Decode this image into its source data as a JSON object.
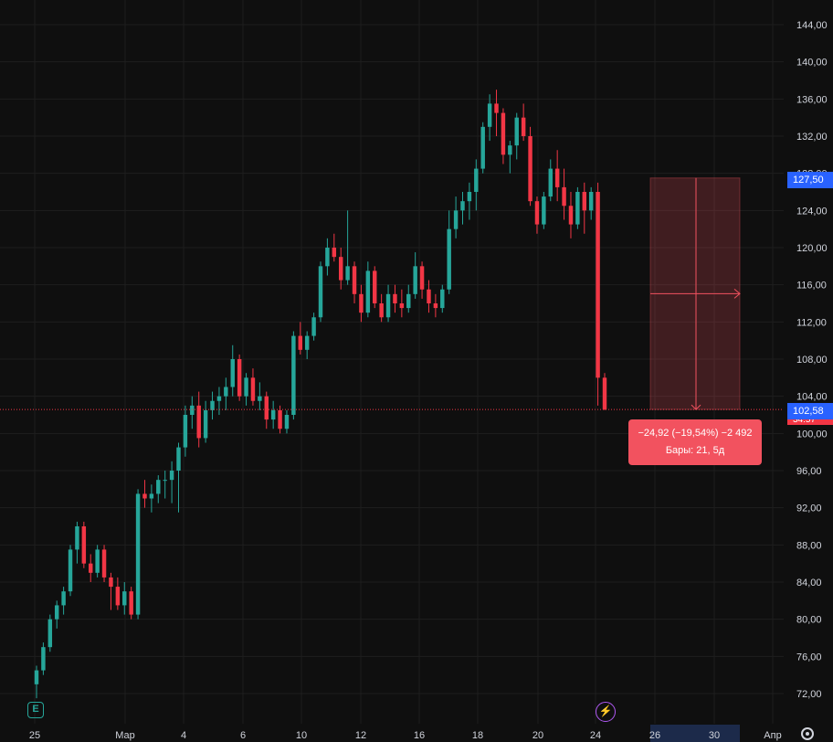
{
  "chart_data": {
    "type": "candlestick",
    "ylim": [
      70,
      146
    ],
    "y_ticks": [
      "72,00",
      "76,00",
      "80,00",
      "84,00",
      "88,00",
      "92,00",
      "96,00",
      "100,00",
      "104,00",
      "108,00",
      "112,00",
      "116,00",
      "120,00",
      "124,00",
      "128,00",
      "132,00",
      "136,00",
      "140,00",
      "144,00"
    ],
    "x_ticks": [
      "25",
      "Мар",
      "4",
      "6",
      "10",
      "12",
      "16",
      "18",
      "20",
      "24",
      "26",
      "30",
      "Апр"
    ],
    "current_price": 102.58,
    "colors": {
      "up": "#26a69a",
      "down": "#f23645",
      "measure": "#f2525f",
      "blue": "#2962ff",
      "grid": "#1e1e1e",
      "background": "#0f0f0f"
    },
    "candles": [
      [
        73.0,
        75.0,
        71.5,
        74.5
      ],
      [
        74.5,
        77.5,
        74.0,
        77.0
      ],
      [
        77.0,
        80.5,
        76.5,
        80.0
      ],
      [
        80.0,
        82.0,
        79.0,
        81.5
      ],
      [
        81.5,
        83.5,
        80.5,
        83.0
      ],
      [
        83.0,
        88.0,
        82.5,
        87.5
      ],
      [
        87.5,
        90.5,
        86.0,
        90.0
      ],
      [
        90.0,
        90.5,
        85.5,
        86.0
      ],
      [
        86.0,
        87.0,
        84.0,
        85.0
      ],
      [
        85.0,
        88.0,
        84.5,
        87.5
      ],
      [
        87.5,
        88.0,
        84.0,
        84.5
      ],
      [
        84.5,
        85.0,
        81.0,
        83.5
      ],
      [
        83.5,
        84.5,
        81.0,
        81.5
      ],
      [
        81.5,
        84.0,
        80.5,
        83.0
      ],
      [
        83.0,
        83.5,
        80.0,
        80.5
      ],
      [
        80.5,
        94.0,
        80.0,
        93.5
      ],
      [
        93.5,
        95.0,
        92.0,
        93.0
      ],
      [
        93.0,
        94.5,
        91.5,
        93.5
      ],
      [
        93.5,
        95.5,
        92.5,
        95.0
      ],
      [
        95.0,
        96.0,
        93.0,
        95.0
      ],
      [
        95.0,
        97.0,
        92.5,
        96.0
      ],
      [
        96.0,
        99.0,
        91.5,
        98.5
      ],
      [
        98.5,
        103.0,
        97.5,
        102.0
      ],
      [
        102.0,
        104.0,
        100.5,
        103.0
      ],
      [
        103.0,
        104.5,
        98.5,
        99.5
      ],
      [
        99.5,
        103.5,
        99.0,
        102.5
      ],
      [
        102.5,
        104.5,
        101.5,
        103.5
      ],
      [
        103.5,
        105.0,
        102.0,
        104.0
      ],
      [
        104.0,
        106.0,
        102.5,
        105.0
      ],
      [
        105.0,
        109.5,
        104.0,
        108.0
      ],
      [
        108.0,
        108.5,
        103.5,
        104.0
      ],
      [
        104.0,
        106.5,
        103.0,
        106.0
      ],
      [
        106.0,
        107.0,
        103.0,
        103.5
      ],
      [
        103.5,
        105.5,
        102.5,
        104.0
      ],
      [
        104.0,
        104.5,
        100.5,
        101.5
      ],
      [
        101.5,
        103.5,
        100.5,
        102.5
      ],
      [
        102.5,
        103.0,
        100.0,
        100.5
      ],
      [
        100.5,
        102.5,
        100.0,
        102.0
      ],
      [
        102.0,
        111.0,
        101.5,
        110.5
      ],
      [
        110.5,
        112.0,
        108.5,
        109.0
      ],
      [
        109.0,
        111.0,
        108.0,
        110.5
      ],
      [
        110.5,
        113.0,
        110.0,
        112.5
      ],
      [
        112.5,
        118.5,
        112.0,
        118.0
      ],
      [
        118.0,
        121.0,
        117.0,
        120.0
      ],
      [
        120.0,
        121.5,
        118.5,
        119.0
      ],
      [
        119.0,
        120.0,
        115.5,
        116.5
      ],
      [
        116.5,
        124.0,
        116.0,
        118.0
      ],
      [
        118.0,
        118.5,
        114.0,
        115.0
      ],
      [
        115.0,
        116.0,
        112.0,
        113.0
      ],
      [
        113.0,
        118.5,
        112.5,
        117.5
      ],
      [
        117.5,
        118.0,
        113.5,
        114.0
      ],
      [
        114.0,
        115.0,
        112.0,
        112.5
      ],
      [
        112.5,
        116.0,
        112.0,
        115.0
      ],
      [
        115.0,
        116.0,
        113.0,
        114.0
      ],
      [
        114.0,
        115.5,
        112.5,
        113.5
      ],
      [
        113.5,
        116.0,
        113.0,
        115.0
      ],
      [
        115.0,
        119.5,
        114.5,
        118.0
      ],
      [
        118.0,
        118.5,
        114.5,
        115.5
      ],
      [
        115.5,
        116.5,
        113.0,
        114.0
      ],
      [
        114.0,
        115.0,
        112.5,
        113.5
      ],
      [
        113.5,
        116.0,
        113.0,
        115.5
      ],
      [
        115.5,
        124.0,
        115.0,
        122.0
      ],
      [
        122.0,
        125.5,
        121.0,
        124.0
      ],
      [
        124.0,
        126.0,
        122.5,
        125.0
      ],
      [
        125.0,
        127.0,
        123.0,
        126.0
      ],
      [
        126.0,
        129.5,
        124.0,
        128.5
      ],
      [
        128.5,
        133.5,
        128.0,
        133.0
      ],
      [
        133.0,
        136.5,
        131.5,
        135.5
      ],
      [
        135.5,
        137.0,
        132.0,
        134.5
      ],
      [
        134.5,
        135.0,
        129.0,
        130.0
      ],
      [
        130.0,
        131.5,
        128.0,
        131.0
      ],
      [
        131.0,
        134.5,
        129.5,
        134.0
      ],
      [
        134.0,
        135.5,
        131.5,
        132.0
      ],
      [
        132.0,
        133.0,
        124.5,
        125.0
      ],
      [
        125.0,
        125.5,
        121.5,
        122.5
      ],
      [
        122.5,
        126.0,
        122.0,
        125.5
      ],
      [
        125.5,
        129.5,
        125.0,
        128.5
      ],
      [
        128.5,
        130.5,
        125.0,
        126.5
      ],
      [
        126.5,
        128.5,
        123.0,
        124.5
      ],
      [
        124.5,
        126.0,
        121.0,
        122.5
      ],
      [
        122.5,
        126.5,
        122.0,
        126.0
      ],
      [
        126.0,
        127.0,
        121.5,
        124.0
      ],
      [
        124.0,
        126.5,
        123.0,
        126.0
      ],
      [
        126.0,
        127.0,
        103.0,
        106.0
      ],
      [
        106.0,
        106.5,
        102.5,
        102.58
      ]
    ],
    "measure": {
      "from": 127.5,
      "to": 102.58,
      "label": "−24,92 (−19,54%) −2 492",
      "bars_label": "Бары: 21, 5д"
    },
    "price_tags": {
      "top": "127,50",
      "current": "102,58",
      "small": "34:57"
    }
  },
  "badges": {
    "earnings": "E",
    "flash": "⚡"
  }
}
